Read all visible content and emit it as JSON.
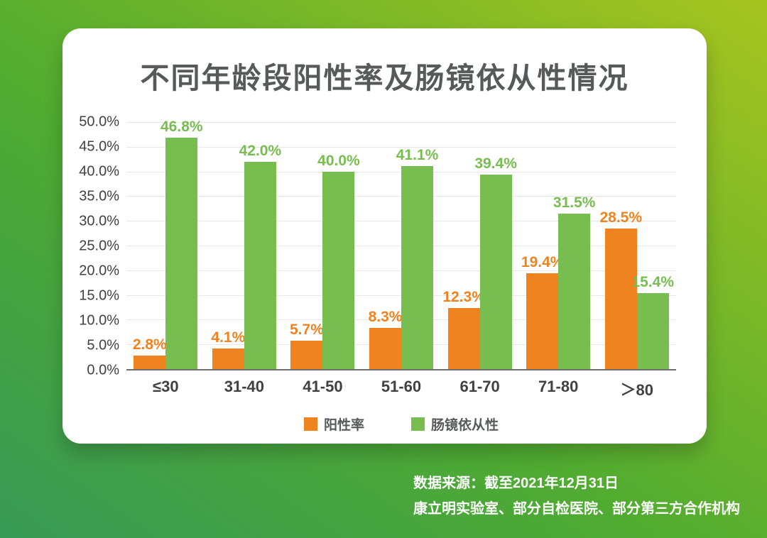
{
  "card": {
    "title": "不同年龄段阳性率及肠镜依从性情况"
  },
  "chart_data": {
    "type": "bar",
    "title": "不同年龄段阳性率及肠镜依从性情况",
    "categories": [
      "≤30",
      "31-40",
      "41-50",
      "51-60",
      "61-70",
      "71-80",
      "＞80"
    ],
    "series": [
      {
        "name": "阳性率",
        "color": "#EF8320",
        "values": [
          2.8,
          4.1,
          5.7,
          8.3,
          12.3,
          19.4,
          28.5
        ]
      },
      {
        "name": "肠镜依从性",
        "color": "#77BD4F",
        "values": [
          46.8,
          42.0,
          40.0,
          41.1,
          39.4,
          31.5,
          15.4
        ]
      }
    ],
    "data_label_format": "{value}%",
    "y_ticks": [
      "50.0%",
      "45.0%",
      "40.0%",
      "35.0%",
      "30.0%",
      "25.0%",
      "20.0%",
      "15.0%",
      "10.0%",
      "5.0%",
      "0.0%"
    ],
    "ylim": [
      0,
      50
    ],
    "grid": true,
    "legend_position": "bottom",
    "data_labels": true
  },
  "source": {
    "line1": "数据来源：截至2021年12月31日",
    "line2": "康立明实验室、部分自检医院、部分第三方合作机构"
  },
  "colors": {
    "background_gradient": [
      "#389956",
      "#4FAB31",
      "#A7C41F"
    ],
    "card_background": "#FFFFFF",
    "title_text": "#58595B",
    "axis_text": "#414042",
    "gridline": "#E7E7E7",
    "axis_line": "#6D6E71",
    "positive_rate": "#EF8320",
    "colonoscopy_compliance": "#77BD4F",
    "source_text": "#FFFFFF"
  }
}
